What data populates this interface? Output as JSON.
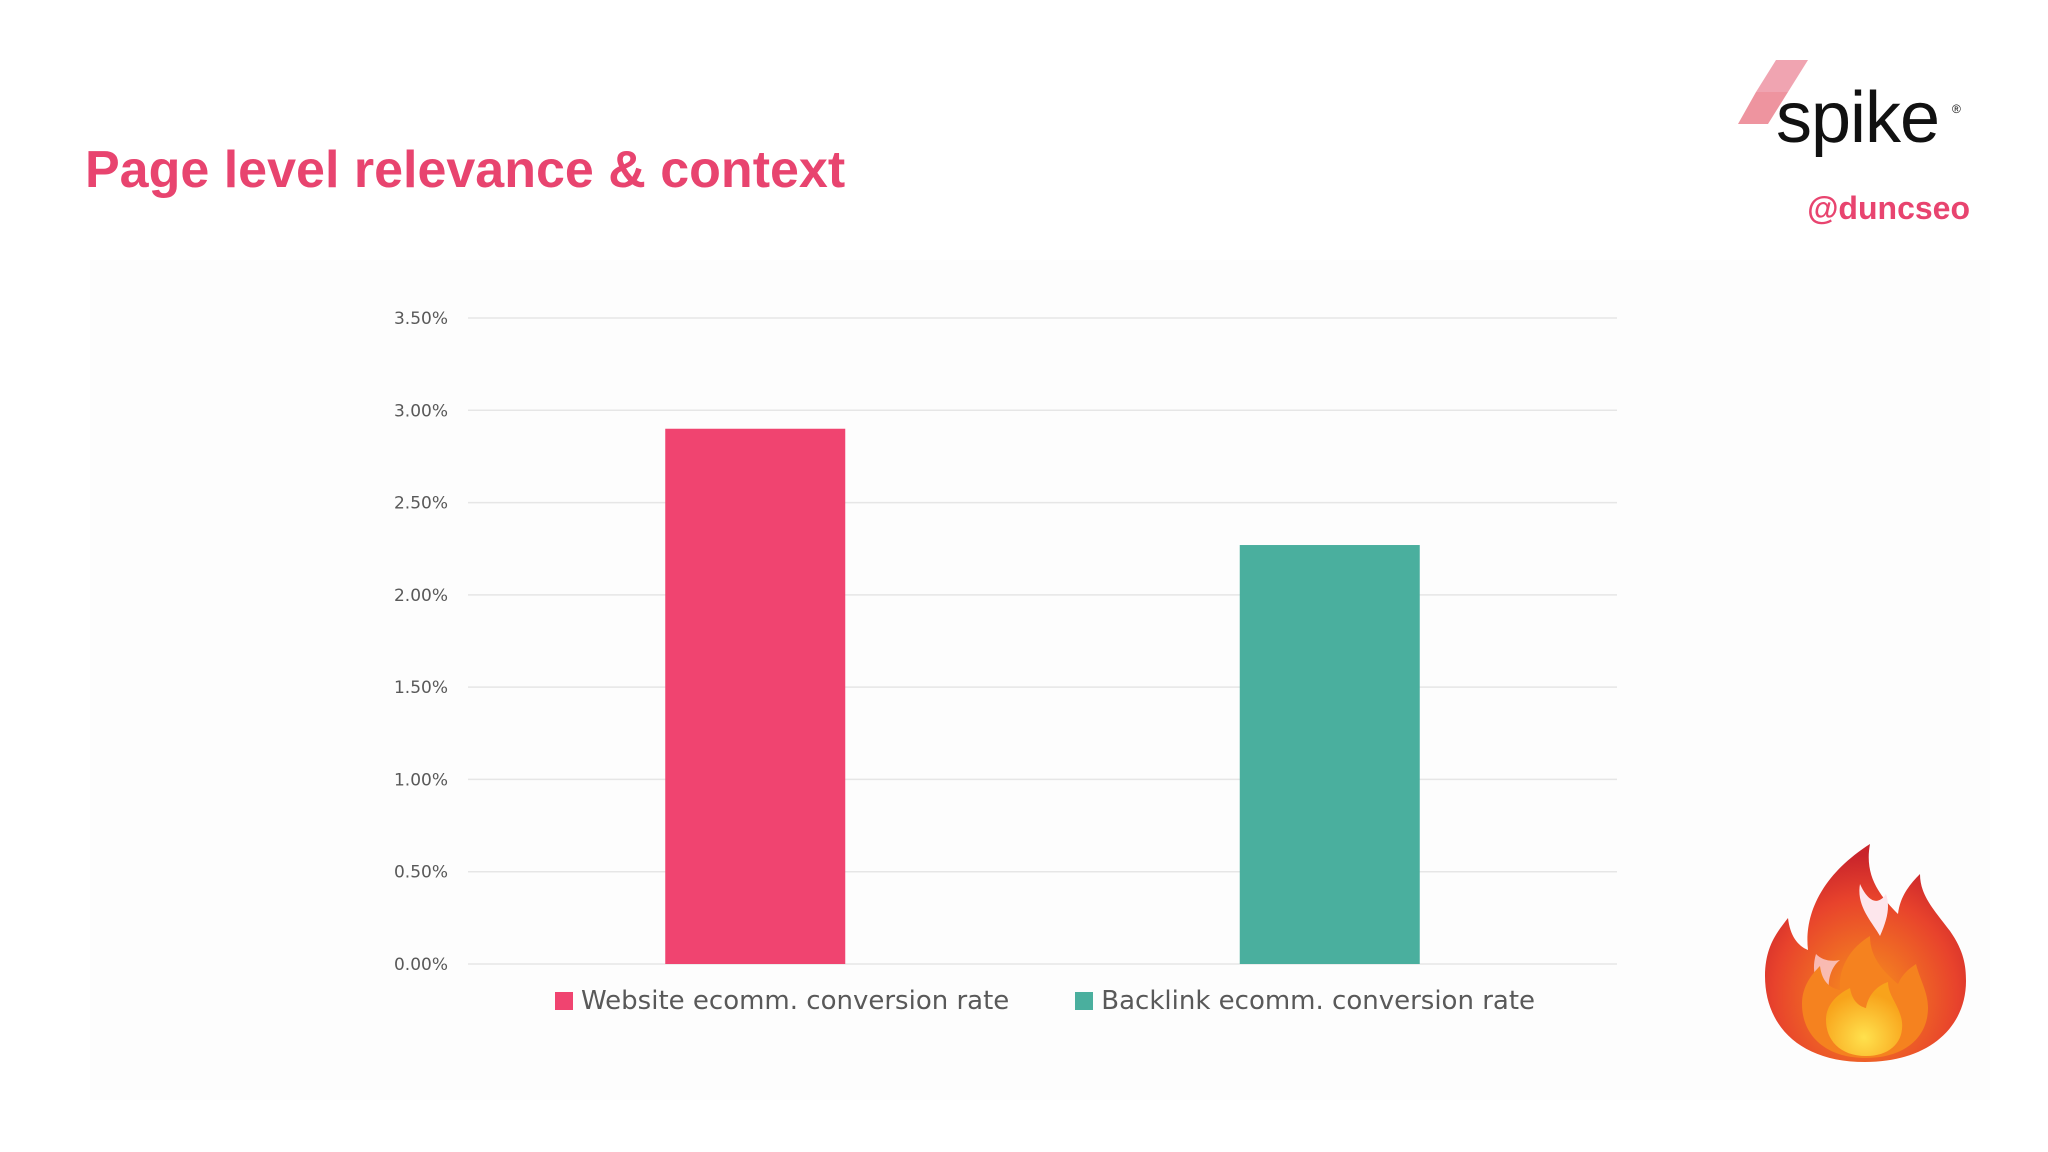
{
  "slide": {
    "title": "Page level relevance & context",
    "handle": "@duncseo"
  },
  "brand": {
    "name": "spike",
    "registered_mark": "®",
    "mark_colors": [
      "#f0a4b1",
      "#e8707f"
    ]
  },
  "decoration": {
    "fire_icon": "fire-emoji"
  },
  "colors": {
    "accent": "#e8446f",
    "website_bar": "#f04470",
    "backlink_bar": "#4aaf9e",
    "gridline": "#e6e6e6",
    "axis_text": "#595959"
  },
  "chart_data": {
    "type": "bar",
    "title": "",
    "xlabel": "",
    "ylabel": "",
    "ylim": [
      0,
      0.035
    ],
    "yticks": [
      "0.00%",
      "0.50%",
      "1.00%",
      "1.50%",
      "2.00%",
      "2.50%",
      "3.00%",
      "3.50%"
    ],
    "grid": true,
    "legend_position": "bottom",
    "series": [
      {
        "name": "Website ecomm. conversion rate",
        "values": [
          0.029
        ],
        "color": "#f04470"
      },
      {
        "name": "Backlink ecomm. conversion rate",
        "values": [
          0.0227
        ],
        "color": "#4aaf9e"
      }
    ]
  }
}
